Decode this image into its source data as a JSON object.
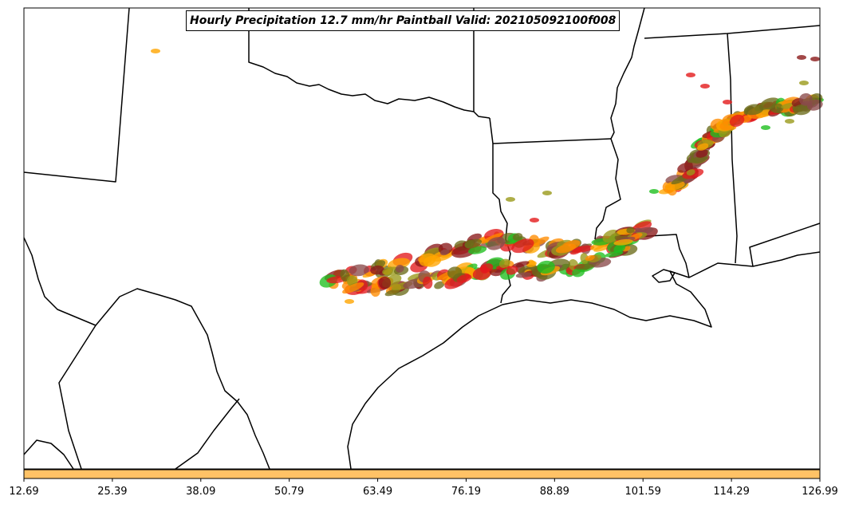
{
  "title": "Hourly Precipitation 12.7 mm/hr Paintball Valid: 202105092100f008",
  "colorbar": {
    "ticks": [
      "12.69",
      "25.39",
      "38.09",
      "50.79",
      "63.49",
      "76.19",
      "88.89",
      "101.59",
      "114.29",
      "126.99"
    ],
    "color": "#ffc266"
  },
  "map": {
    "background": "#ffffff",
    "boundary_color": "#000000",
    "ensemble_colors": [
      "#e31a1c",
      "#ff8c00",
      "#ffa500",
      "#1fbf1f",
      "#8b1a1a",
      "#9a9a1a",
      "#6b6b1a",
      "#8b4a4a"
    ]
  }
}
